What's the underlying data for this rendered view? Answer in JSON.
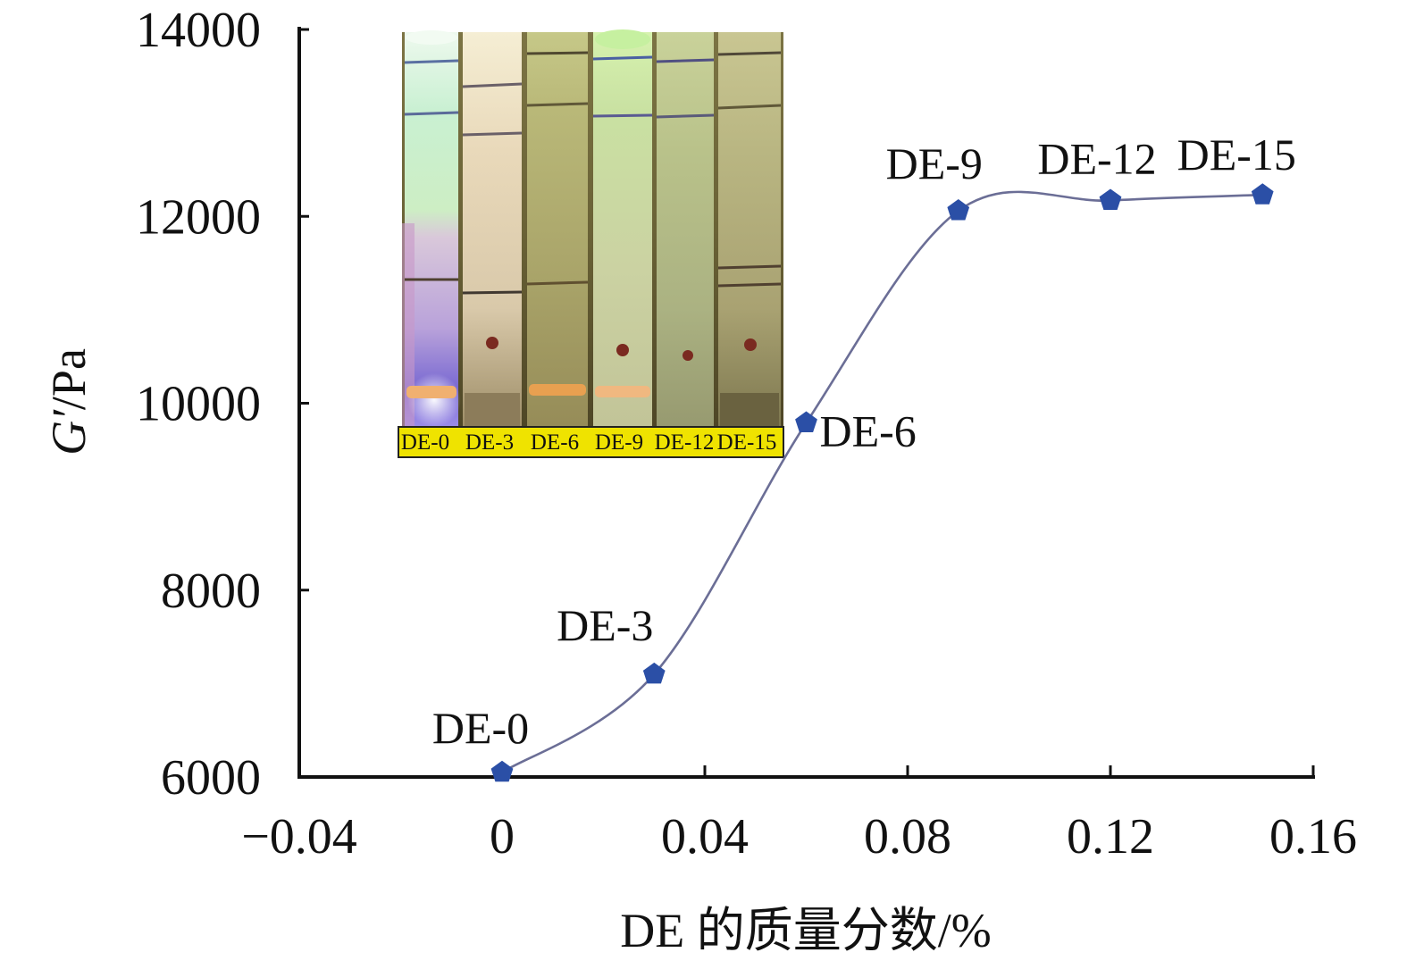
{
  "chart_data": {
    "type": "line",
    "x": [
      0,
      0.03,
      0.06,
      0.09,
      0.12,
      0.15
    ],
    "series": [
      {
        "values": [
          6050,
          7100,
          9790,
          12060,
          12170,
          12230
        ],
        "marker": "pentagon",
        "marker_color": "#2b4fa6",
        "line_color": "#6b6e96",
        "smooth": true
      }
    ],
    "point_labels": [
      "DE-0",
      "DE-3",
      "DE-6",
      "DE-9",
      "DE-12",
      "DE-15"
    ],
    "xlabel": "DE 的质量分数/%",
    "ylabel": {
      "symbol": "G′",
      "unit": "/Pa"
    },
    "xlim": [
      -0.04,
      0.16
    ],
    "ylim": [
      6000,
      14000
    ],
    "x_ticks": [
      -0.04,
      0,
      0.04,
      0.08,
      0.12,
      0.16
    ],
    "x_tick_labels": [
      "−0.04",
      "0",
      "0.04",
      "0.08",
      "0.12",
      "0.16"
    ],
    "y_ticks": [
      6000,
      8000,
      10000,
      12000,
      14000
    ],
    "y_tick_labels": [
      "6000",
      "8000",
      "10000",
      "12000",
      "14000"
    ],
    "grid": false,
    "legend": "none"
  },
  "inset": {
    "labels": [
      "DE-0",
      "DE-3",
      "DE-6",
      "DE-9",
      "DE-12",
      "DE-15"
    ],
    "label_strip_color": "#efe300"
  }
}
